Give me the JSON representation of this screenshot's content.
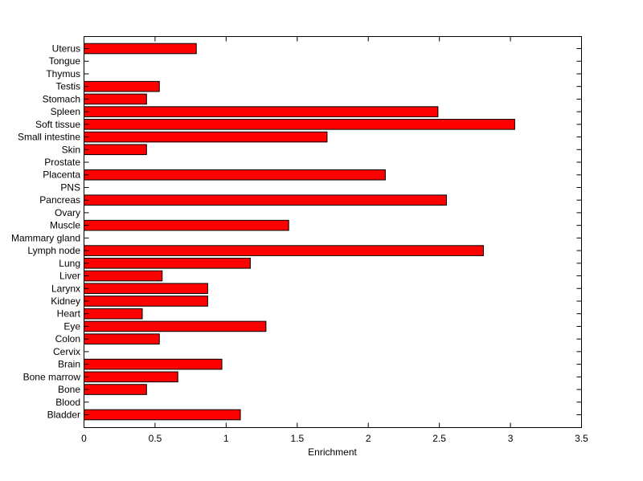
{
  "chart_data": {
    "type": "bar",
    "orientation": "horizontal",
    "title": "",
    "xlabel": "Enrichment",
    "ylabel": "",
    "xlim": [
      0,
      3.5
    ],
    "xticks": [
      "0",
      "0.5",
      "1",
      "1.5",
      "2",
      "2.5",
      "3",
      "3.5"
    ],
    "grid": false,
    "bar_color": "#ff0000",
    "bar_edge_color": "#000000",
    "categories": [
      "Uterus",
      "Tongue",
      "Thymus",
      "Testis",
      "Stomach",
      "Spleen",
      "Soft tissue",
      "Small intestine",
      "Skin",
      "Prostate",
      "Placenta",
      "PNS",
      "Pancreas",
      "Ovary",
      "Muscle",
      "Mammary gland",
      "Lymph node",
      "Lung",
      "Liver",
      "Larynx",
      "Kidney",
      "Heart",
      "Eye",
      "Colon",
      "Cervix",
      "Brain",
      "Bone marrow",
      "Bone",
      "Blood",
      "Bladder"
    ],
    "values": [
      0.79,
      0,
      0,
      0.53,
      0.44,
      2.49,
      3.03,
      1.71,
      0.44,
      0,
      2.12,
      0,
      2.55,
      0,
      1.44,
      0,
      2.81,
      1.17,
      0.55,
      0.87,
      0.87,
      0.41,
      1.28,
      0.53,
      0,
      0.97,
      0.66,
      0.44,
      0,
      1.1
    ]
  }
}
